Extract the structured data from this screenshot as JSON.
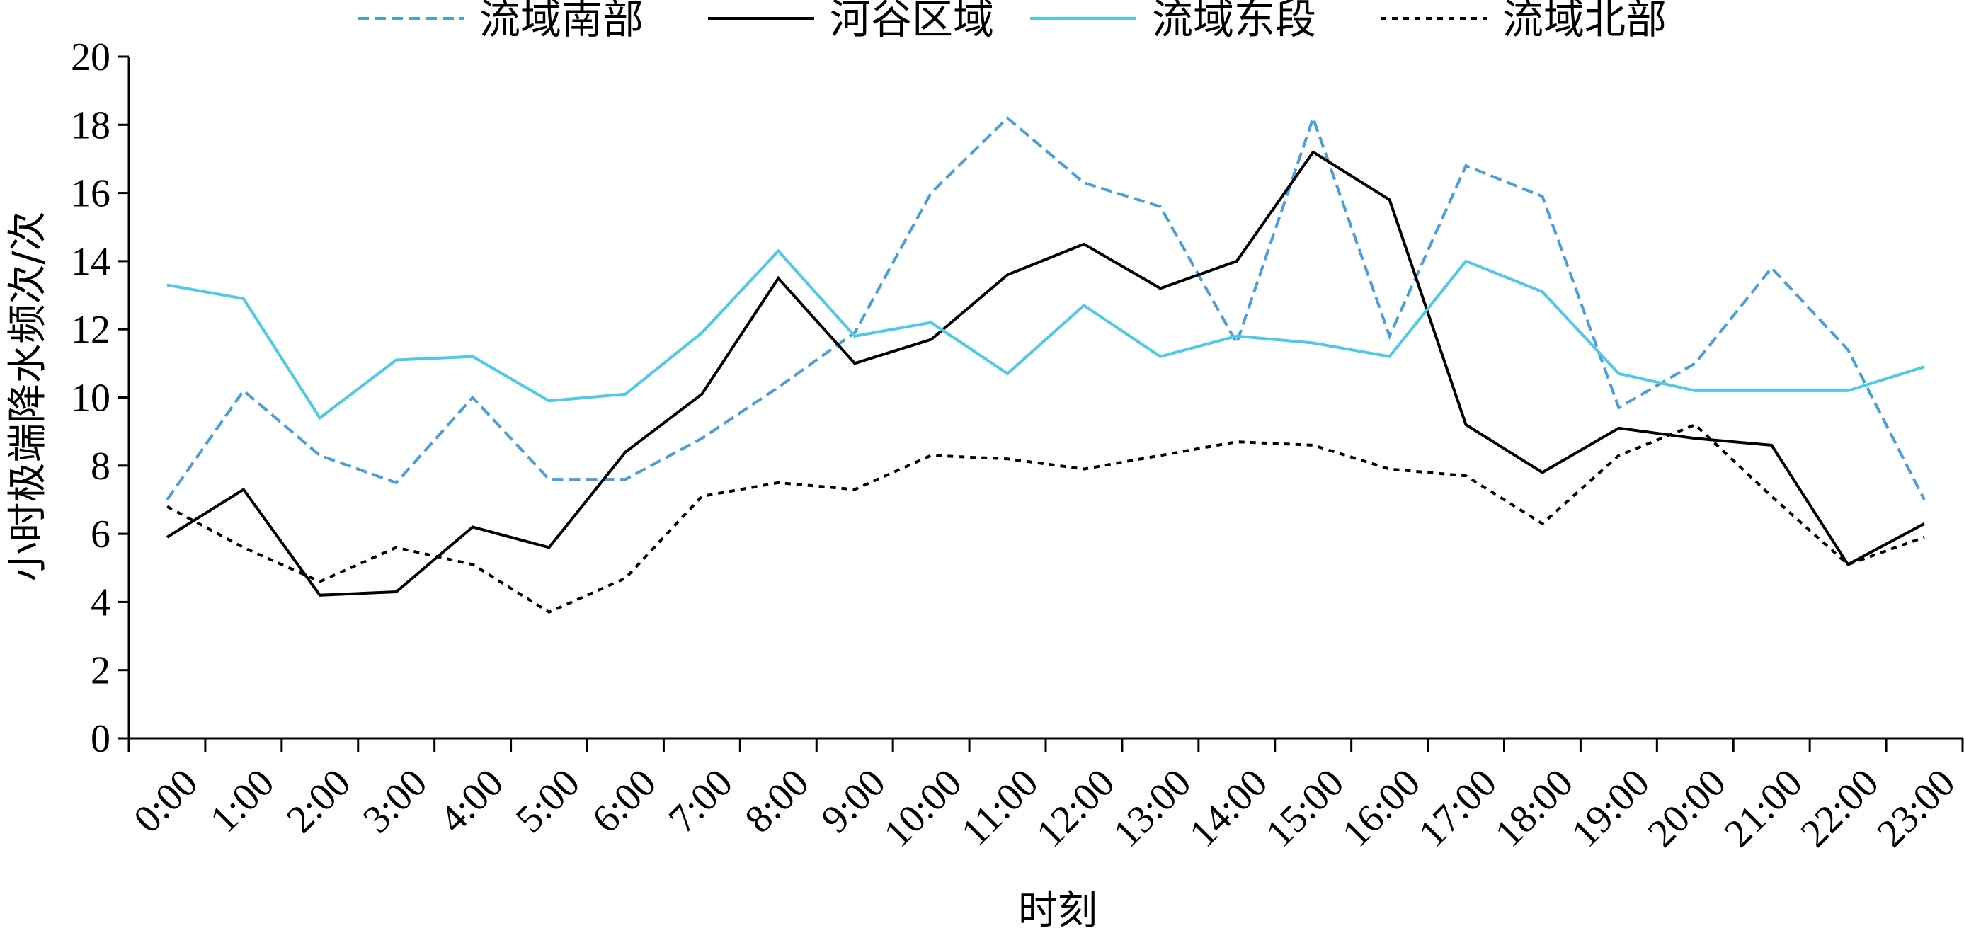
{
  "chart_data": {
    "type": "line",
    "xlabel": "时刻",
    "ylabel": "小时极端降水频次/次",
    "ylim": [
      0,
      20
    ],
    "yticks": [
      0,
      2,
      4,
      6,
      8,
      10,
      12,
      14,
      16,
      18,
      20
    ],
    "grid": false,
    "legend_position": "top",
    "categories": [
      "0:00",
      "1:00",
      "2:00",
      "3:00",
      "4:00",
      "5:00",
      "6:00",
      "7:00",
      "8:00",
      "9:00",
      "10:00",
      "11:00",
      "12:00",
      "13:00",
      "14:00",
      "15:00",
      "16:00",
      "17:00",
      "18:00",
      "19:00",
      "20:00",
      "21:00",
      "22:00",
      "23:00"
    ],
    "series": [
      {
        "name": "流域南部",
        "color": "#4a9fd8",
        "dash": "dashed",
        "values": [
          7.0,
          10.2,
          8.3,
          7.5,
          10.0,
          7.6,
          7.6,
          8.8,
          10.3,
          11.9,
          16.0,
          18.2,
          16.3,
          15.6,
          11.6,
          18.2,
          11.8,
          16.8,
          15.9,
          9.7,
          11.0,
          13.8,
          11.4,
          7.0
        ]
      },
      {
        "name": "河谷区域",
        "color": "#000000",
        "dash": "solid",
        "values": [
          5.9,
          7.3,
          4.2,
          4.3,
          6.2,
          5.6,
          8.4,
          10.1,
          13.5,
          11.0,
          11.7,
          13.6,
          14.5,
          13.2,
          14.0,
          17.2,
          15.8,
          9.2,
          7.8,
          9.1,
          8.8,
          8.6,
          5.1,
          6.3
        ]
      },
      {
        "name": "流域东段",
        "color": "#4dc9ea",
        "dash": "solid",
        "values": [
          13.3,
          12.9,
          9.4,
          11.1,
          11.2,
          9.9,
          10.1,
          11.9,
          14.3,
          11.8,
          12.2,
          10.7,
          12.7,
          11.2,
          11.8,
          11.6,
          11.2,
          14.0,
          13.1,
          10.7,
          10.2,
          10.2,
          10.2,
          10.9
        ]
      },
      {
        "name": "流域北部",
        "color": "#000000",
        "dash": "dotted",
        "values": [
          6.8,
          5.6,
          4.6,
          5.6,
          5.1,
          3.7,
          4.7,
          7.1,
          7.5,
          7.3,
          8.3,
          8.2,
          7.9,
          8.3,
          8.7,
          8.6,
          7.9,
          7.7,
          6.3,
          8.3,
          9.2,
          7.1,
          5.1,
          5.9
        ]
      }
    ]
  }
}
